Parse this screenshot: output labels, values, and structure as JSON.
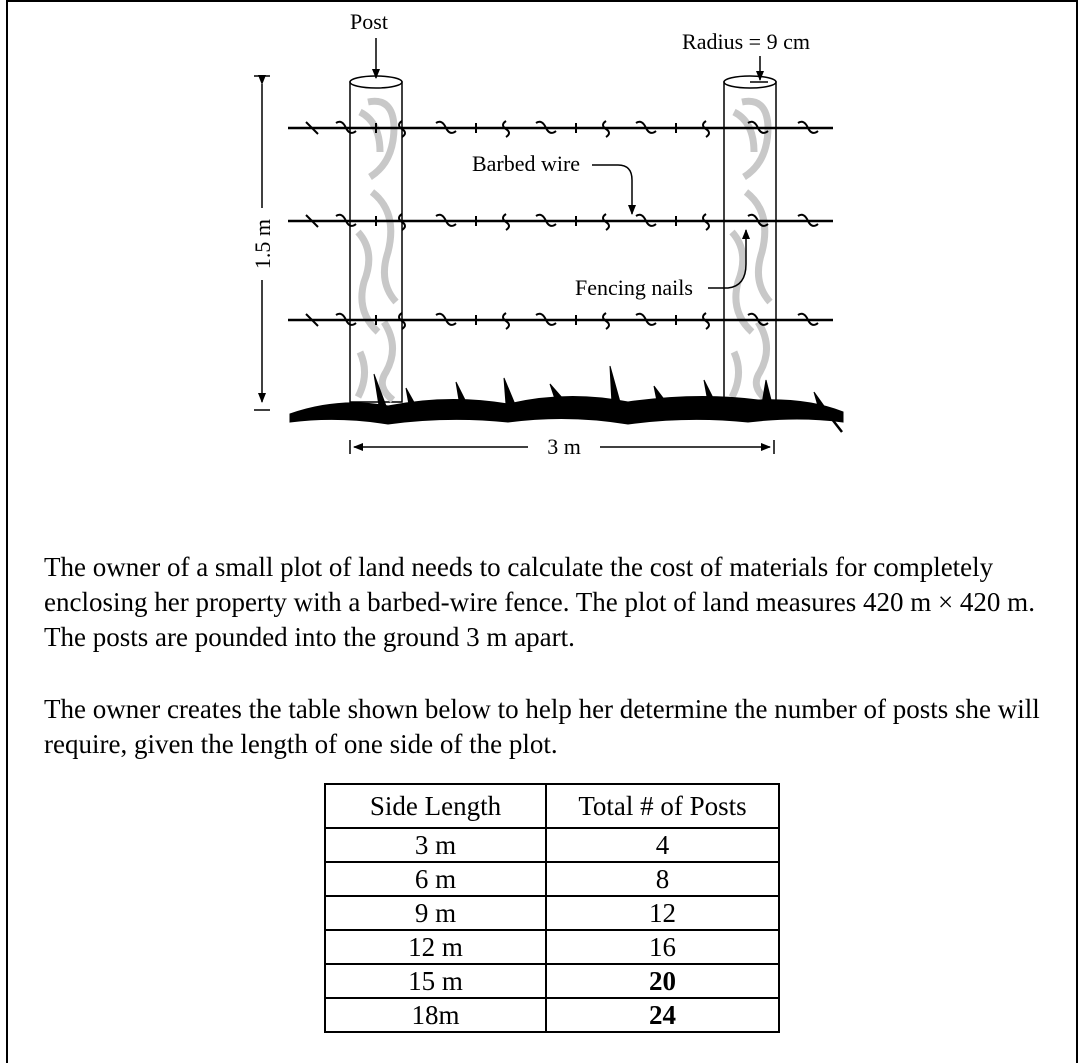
{
  "diagram": {
    "post_label": "Post",
    "radius_label": "Radius = 9 cm",
    "barbed_wire_label": "Barbed wire",
    "fencing_nails_label": "Fencing nails",
    "height_label": "1.5 m",
    "spacing_label": "3 m",
    "wire_color": "#000000",
    "post_grain_color": "#c8c8c8"
  },
  "paragraph1": {
    "pre": "The owner of a small plot of land needs to calculate the cost of materials for completely enclosing her property with a barbed-wire fence.  The plot of land measures ",
    "dims": "420 m × 420 m",
    "mid": ".  The posts are pounded into the ground ",
    "spacing": "3 m",
    "post": " apart."
  },
  "paragraph2": "The owner creates the table shown below to help her determine the number of posts she will require, given the length of one side of the plot.",
  "table": {
    "headers": [
      "Side Length",
      "Total # of Posts"
    ],
    "rows": [
      {
        "side": "3 m",
        "posts": "4"
      },
      {
        "side": "6 m",
        "posts": "8"
      },
      {
        "side": "9 m",
        "posts": "12"
      },
      {
        "side": "12 m",
        "posts": "16"
      },
      {
        "side": "15 m",
        "posts": "20"
      },
      {
        "side": "18m",
        "posts": "24"
      }
    ]
  }
}
